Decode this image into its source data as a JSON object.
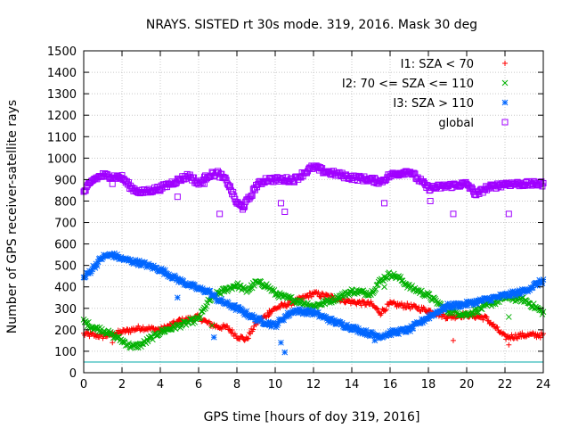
{
  "chart_data": {
    "type": "scatter",
    "title": "NRAYS. SISTED rt 30s mode. 319, 2016. Mask 30 deg",
    "xlabel": "GPS time [hours of doy 319, 2016]",
    "ylabel": "Number of GPS receiver-satellite rays",
    "xlim": [
      0,
      24
    ],
    "ylim": [
      0,
      1500
    ],
    "xticks": [
      0,
      2,
      4,
      6,
      8,
      10,
      12,
      14,
      16,
      18,
      20,
      22,
      24
    ],
    "yticks": [
      0,
      100,
      200,
      300,
      400,
      500,
      600,
      700,
      800,
      900,
      1000,
      1100,
      1200,
      1300,
      1400,
      1500
    ],
    "grid": true,
    "legend_position": "top-right",
    "series": [
      {
        "name": "I1: SZA < 70",
        "color": "#ff0000",
        "marker": "+",
        "points": [
          [
            0,
            180
          ],
          [
            1,
            170
          ],
          [
            2,
            190
          ],
          [
            3,
            210
          ],
          [
            4,
            200
          ],
          [
            5,
            240
          ],
          [
            6,
            260
          ],
          [
            6.5,
            230
          ],
          [
            7,
            215
          ],
          [
            7.5,
            210
          ],
          [
            8,
            170
          ],
          [
            8.5,
            155
          ],
          [
            9,
            230
          ],
          [
            10,
            300
          ],
          [
            11,
            330
          ],
          [
            12,
            370
          ],
          [
            13,
            350
          ],
          [
            14,
            330
          ],
          [
            15,
            320
          ],
          [
            15.5,
            280
          ],
          [
            16,
            320
          ],
          [
            17,
            310
          ],
          [
            18,
            290
          ],
          [
            19,
            260
          ],
          [
            20,
            270
          ],
          [
            21,
            255
          ],
          [
            22,
            165
          ],
          [
            23,
            175
          ],
          [
            24,
            175
          ]
        ],
        "outliers": [
          [
            1.5,
            140
          ],
          [
            5,
            250
          ],
          [
            9.7,
            290
          ],
          [
            19.3,
            150
          ],
          [
            22.2,
            130
          ]
        ]
      },
      {
        "name": "I2: 70 <= SZA <= 110",
        "color": "#00b000",
        "marker": "x",
        "points": [
          [
            0,
            240
          ],
          [
            0.5,
            210
          ],
          [
            1,
            200
          ],
          [
            2,
            150
          ],
          [
            2.5,
            120
          ],
          [
            3,
            130
          ],
          [
            4,
            190
          ],
          [
            5,
            220
          ],
          [
            6,
            250
          ],
          [
            6.5,
            330
          ],
          [
            7,
            370
          ],
          [
            8,
            410
          ],
          [
            8.5,
            380
          ],
          [
            9,
            420
          ],
          [
            9.5,
            410
          ],
          [
            10,
            370
          ],
          [
            10.5,
            350
          ],
          [
            11,
            340
          ],
          [
            12,
            310
          ],
          [
            13,
            340
          ],
          [
            14,
            380
          ],
          [
            15,
            370
          ],
          [
            15.5,
            430
          ],
          [
            16,
            460
          ],
          [
            16.5,
            440
          ],
          [
            17,
            400
          ],
          [
            18,
            360
          ],
          [
            19,
            290
          ],
          [
            20,
            270
          ],
          [
            21,
            310
          ],
          [
            22,
            350
          ],
          [
            23,
            340
          ],
          [
            24,
            280
          ]
        ],
        "outliers": [
          [
            6.7,
            220
          ],
          [
            15.7,
            400
          ],
          [
            22.2,
            260
          ]
        ]
      },
      {
        "name": "I3: SZA > 110",
        "color": "#0066ff",
        "marker": "*",
        "points": [
          [
            0,
            440
          ],
          [
            0.5,
            490
          ],
          [
            1,
            540
          ],
          [
            1.5,
            550
          ],
          [
            2,
            530
          ],
          [
            3,
            510
          ],
          [
            4,
            480
          ],
          [
            5,
            430
          ],
          [
            6,
            390
          ],
          [
            6.5,
            380
          ],
          [
            7,
            340
          ],
          [
            8,
            300
          ],
          [
            9,
            250
          ],
          [
            10,
            220
          ],
          [
            10.5,
            260
          ],
          [
            11,
            290
          ],
          [
            12,
            280
          ],
          [
            13,
            240
          ],
          [
            14,
            210
          ],
          [
            15,
            180
          ],
          [
            15.5,
            170
          ],
          [
            16,
            185
          ],
          [
            17,
            200
          ],
          [
            18,
            260
          ],
          [
            19,
            310
          ],
          [
            20,
            320
          ],
          [
            21,
            340
          ],
          [
            22,
            360
          ],
          [
            23,
            380
          ],
          [
            24,
            430
          ]
        ],
        "outliers": [
          [
            4.9,
            350
          ],
          [
            6.8,
            165
          ],
          [
            10.3,
            140
          ],
          [
            10.5,
            95
          ],
          [
            15.2,
            150
          ]
        ]
      },
      {
        "name": "global",
        "color": "#a000ff",
        "marker": "square",
        "points": [
          [
            0,
            840
          ],
          [
            0.5,
            900
          ],
          [
            1,
            920
          ],
          [
            2,
            910
          ],
          [
            2.5,
            860
          ],
          [
            3,
            840
          ],
          [
            4,
            860
          ],
          [
            5,
            900
          ],
          [
            5.5,
            920
          ],
          [
            6,
            880
          ],
          [
            6.5,
            920
          ],
          [
            7,
            930
          ],
          [
            7.5,
            890
          ],
          [
            8,
            790
          ],
          [
            8.3,
            770
          ],
          [
            8.7,
            820
          ],
          [
            9,
            870
          ],
          [
            9.5,
            900
          ],
          [
            10,
            900
          ],
          [
            11,
            900
          ],
          [
            12,
            960
          ],
          [
            12.5,
            940
          ],
          [
            13,
            930
          ],
          [
            14,
            910
          ],
          [
            15,
            900
          ],
          [
            15.5,
            890
          ],
          [
            16,
            920
          ],
          [
            17,
            940
          ],
          [
            17.5,
            900
          ],
          [
            18,
            860
          ],
          [
            19,
            870
          ],
          [
            20,
            880
          ],
          [
            20.5,
            830
          ],
          [
            21,
            860
          ],
          [
            22,
            880
          ],
          [
            23,
            880
          ],
          [
            24,
            880
          ]
        ],
        "outliers": [
          [
            1.5,
            880
          ],
          [
            4.9,
            820
          ],
          [
            6.3,
            880
          ],
          [
            7.1,
            740
          ],
          [
            10.3,
            790
          ],
          [
            10.5,
            750
          ],
          [
            15.2,
            890
          ],
          [
            15.7,
            790
          ],
          [
            18.1,
            800
          ],
          [
            19.3,
            740
          ],
          [
            22.2,
            740
          ]
        ]
      }
    ],
    "threshold_line": {
      "y": 50,
      "color": "#00aaaa"
    }
  }
}
